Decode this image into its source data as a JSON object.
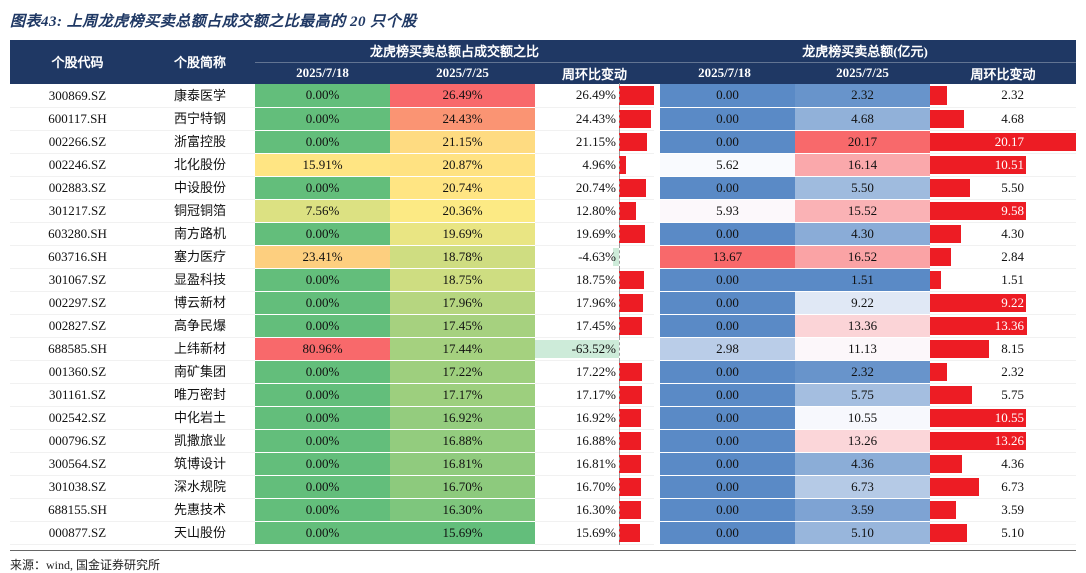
{
  "source": "来源：wind, 国金证券研究所",
  "colors": {
    "header_bg": "#1F3864",
    "title_color": "#1F3864",
    "scale_green": "#63BE7B",
    "scale_yellow": "#FFEB84",
    "scale_red": "#F8696B",
    "scale_blue": "#5A8AC6",
    "scale_white": "#FCFCFF",
    "bar_red": "#ED1C24",
    "bar_negative": "#CDEBD9"
  },
  "chart_data": {
    "type": "table",
    "title": "图表43: 上周龙虎榜买卖总额占成交额之比最高的 20 只个股",
    "headers": {
      "code": "个股代码",
      "name": "个股简称",
      "ratio_group": "龙虎榜买卖总额占成交额之比",
      "amount_group": "龙虎榜买卖总额(亿元)",
      "date_prev": "2025/7/18",
      "date_curr": "2025/7/25",
      "wow": "周环比变动"
    },
    "rows": [
      {
        "code": "300869.SZ",
        "name": "康泰医学",
        "r1": "0.00%",
        "r2": "26.49%",
        "rchg": "26.49%",
        "a1": "0.00",
        "a2": "2.32",
        "achg": "2.32"
      },
      {
        "code": "600117.SH",
        "name": "西宁特钢",
        "r1": "0.00%",
        "r2": "24.43%",
        "rchg": "24.43%",
        "a1": "0.00",
        "a2": "4.68",
        "achg": "4.68"
      },
      {
        "code": "002266.SZ",
        "name": "浙富控股",
        "r1": "0.00%",
        "r2": "21.15%",
        "rchg": "21.15%",
        "a1": "0.00",
        "a2": "20.17",
        "achg": "20.17"
      },
      {
        "code": "002246.SZ",
        "name": "北化股份",
        "r1": "15.91%",
        "r2": "20.87%",
        "rchg": "4.96%",
        "a1": "5.62",
        "a2": "16.14",
        "achg": "10.51"
      },
      {
        "code": "002883.SZ",
        "name": "中设股份",
        "r1": "0.00%",
        "r2": "20.74%",
        "rchg": "20.74%",
        "a1": "0.00",
        "a2": "5.50",
        "achg": "5.50"
      },
      {
        "code": "301217.SZ",
        "name": "铜冠铜箔",
        "r1": "7.56%",
        "r2": "20.36%",
        "rchg": "12.80%",
        "a1": "5.93",
        "a2": "15.52",
        "achg": "9.58"
      },
      {
        "code": "603280.SH",
        "name": "南方路机",
        "r1": "0.00%",
        "r2": "19.69%",
        "rchg": "19.69%",
        "a1": "0.00",
        "a2": "4.30",
        "achg": "4.30"
      },
      {
        "code": "603716.SH",
        "name": "塞力医疗",
        "r1": "23.41%",
        "r2": "18.78%",
        "rchg": "-4.63%",
        "a1": "13.67",
        "a2": "16.52",
        "achg": "2.84"
      },
      {
        "code": "301067.SZ",
        "name": "显盈科技",
        "r1": "0.00%",
        "r2": "18.75%",
        "rchg": "18.75%",
        "a1": "0.00",
        "a2": "1.51",
        "achg": "1.51"
      },
      {
        "code": "002297.SZ",
        "name": "博云新材",
        "r1": "0.00%",
        "r2": "17.96%",
        "rchg": "17.96%",
        "a1": "0.00",
        "a2": "9.22",
        "achg": "9.22"
      },
      {
        "code": "002827.SZ",
        "name": "高争民爆",
        "r1": "0.00%",
        "r2": "17.45%",
        "rchg": "17.45%",
        "a1": "0.00",
        "a2": "13.36",
        "achg": "13.36"
      },
      {
        "code": "688585.SH",
        "name": "上纬新材",
        "r1": "80.96%",
        "r2": "17.44%",
        "rchg": "-63.52%",
        "a1": "2.98",
        "a2": "11.13",
        "achg": "8.15"
      },
      {
        "code": "001360.SZ",
        "name": "南矿集团",
        "r1": "0.00%",
        "r2": "17.22%",
        "rchg": "17.22%",
        "a1": "0.00",
        "a2": "2.32",
        "achg": "2.32"
      },
      {
        "code": "301161.SZ",
        "name": "唯万密封",
        "r1": "0.00%",
        "r2": "17.17%",
        "rchg": "17.17%",
        "a1": "0.00",
        "a2": "5.75",
        "achg": "5.75"
      },
      {
        "code": "002542.SZ",
        "name": "中化岩土",
        "r1": "0.00%",
        "r2": "16.92%",
        "rchg": "16.92%",
        "a1": "0.00",
        "a2": "10.55",
        "achg": "10.55"
      },
      {
        "code": "000796.SZ",
        "name": "凯撒旅业",
        "r1": "0.00%",
        "r2": "16.88%",
        "rchg": "16.88%",
        "a1": "0.00",
        "a2": "13.26",
        "achg": "13.26"
      },
      {
        "code": "300564.SZ",
        "name": "筑博设计",
        "r1": "0.00%",
        "r2": "16.81%",
        "rchg": "16.81%",
        "a1": "0.00",
        "a2": "4.36",
        "achg": "4.36"
      },
      {
        "code": "301038.SZ",
        "name": "深水规院",
        "r1": "0.00%",
        "r2": "16.70%",
        "rchg": "16.70%",
        "a1": "0.00",
        "a2": "6.73",
        "achg": "6.73"
      },
      {
        "code": "688155.SH",
        "name": "先惠技术",
        "r1": "0.00%",
        "r2": "16.30%",
        "rchg": "16.30%",
        "a1": "0.00",
        "a2": "3.59",
        "achg": "3.59"
      },
      {
        "code": "000877.SZ",
        "name": "天山股份",
        "r1": "0.00%",
        "r2": "15.69%",
        "rchg": "15.69%",
        "a1": "0.00",
        "a2": "5.10",
        "achg": "5.10"
      }
    ]
  }
}
